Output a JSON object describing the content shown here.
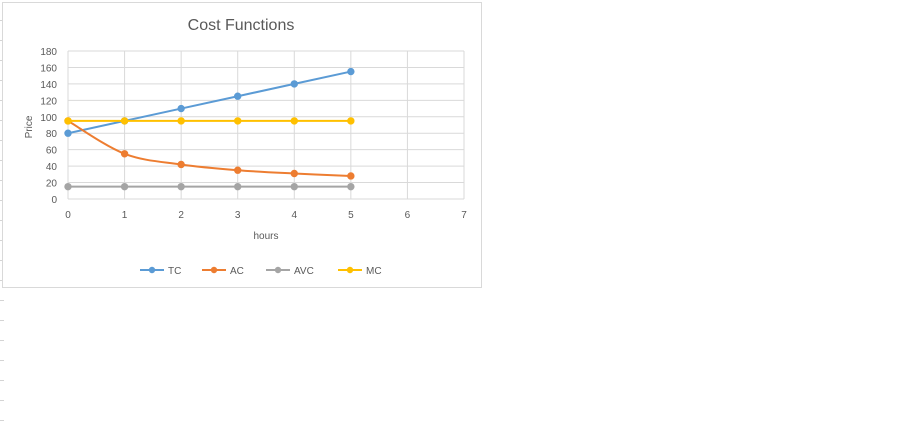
{
  "chart_data": {
    "type": "line",
    "title": "Cost Functions",
    "xlabel": "hours",
    "ylabel": "Price",
    "xlim": [
      0,
      7
    ],
    "ylim": [
      0,
      180
    ],
    "x_ticks": [
      "0",
      "1",
      "2",
      "3",
      "4",
      "5",
      "6",
      "7"
    ],
    "y_ticks": [
      "0",
      "20",
      "40",
      "60",
      "80",
      "100",
      "120",
      "140",
      "160",
      "180"
    ],
    "grid": true,
    "legend_position": "bottom",
    "x": [
      0,
      1,
      2,
      3,
      4,
      5
    ],
    "series": [
      {
        "name": "TC",
        "color": "#5b9bd5",
        "smooth": false,
        "values": [
          80,
          95,
          110,
          125,
          140,
          155
        ]
      },
      {
        "name": "AC",
        "color": "#ed7d31",
        "smooth": true,
        "values": [
          95,
          55,
          42,
          35,
          31,
          28
        ]
      },
      {
        "name": "AVC",
        "color": "#a5a5a5",
        "smooth": false,
        "values": [
          15,
          15,
          15,
          15,
          15,
          15
        ]
      },
      {
        "name": "MC",
        "color": "#ffc000",
        "smooth": false,
        "values": [
          95,
          95,
          95,
          95,
          95,
          95
        ]
      }
    ]
  }
}
